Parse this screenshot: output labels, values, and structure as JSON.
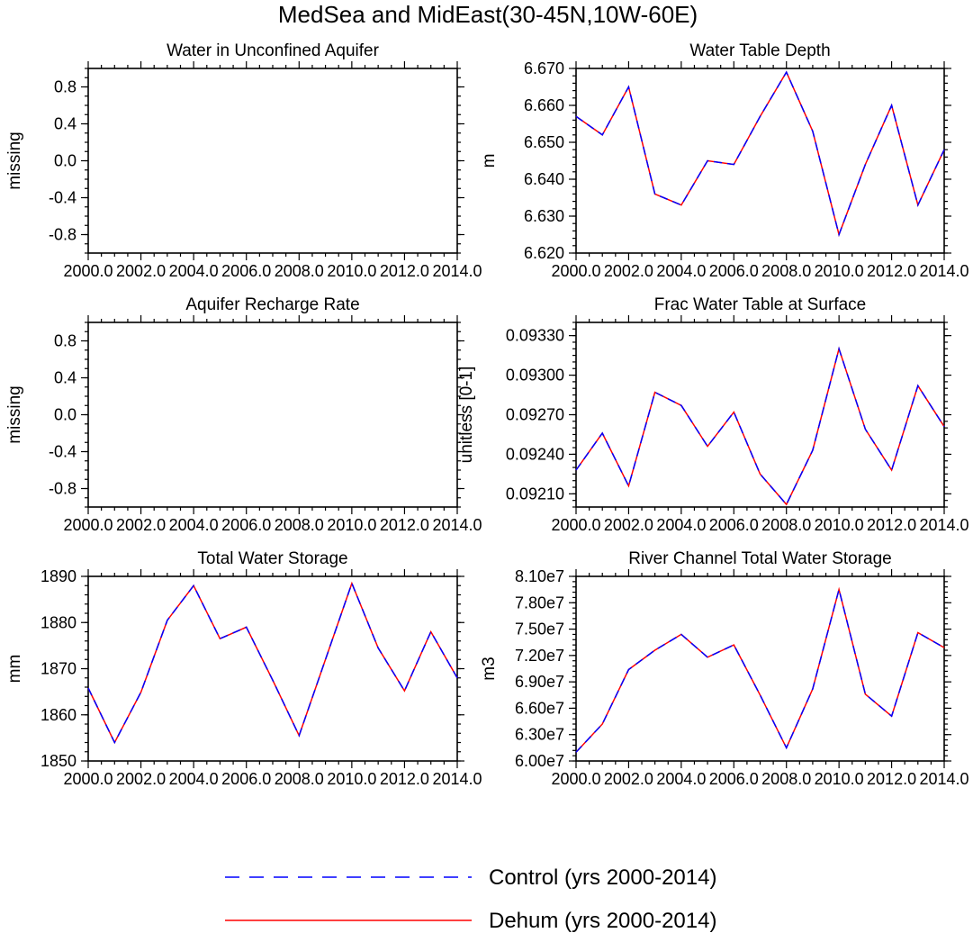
{
  "figure": {
    "title": "MedSea and MidEast(30-45N,10W-60E)"
  },
  "legend": {
    "entries": [
      {
        "label": "Control (yrs 2000-2014)",
        "color": "#0000ff",
        "style": "dashed"
      },
      {
        "label": "Dehum (yrs 2000-2014)",
        "color": "#ff0000",
        "style": "solid"
      }
    ]
  },
  "chart_data": [
    {
      "type": "line",
      "title": "Water in Unconfined Aquifer",
      "xlabel": "",
      "ylabel": "missing",
      "xlim": [
        2000,
        2014
      ],
      "ylim": [
        -1,
        1
      ],
      "xticks": [
        "2000.0",
        "2002.0",
        "2004.0",
        "2006.0",
        "2008.0",
        "2010.0",
        "2012.0",
        "2014.0"
      ],
      "yticks": [
        {
          "v": -0.8,
          "t": "-0.8"
        },
        {
          "v": -0.4,
          "t": "-0.4"
        },
        {
          "v": 0,
          "t": "0.0"
        },
        {
          "v": 0.4,
          "t": "0.4"
        },
        {
          "v": 0.8,
          "t": "0.8"
        }
      ],
      "yminor": 0.1,
      "x": [],
      "series": []
    },
    {
      "type": "line",
      "title": "Water Table Depth",
      "xlabel": "",
      "ylabel": "m",
      "xlim": [
        2000,
        2014
      ],
      "ylim": [
        6.62,
        6.67
      ],
      "xticks": [
        "2000.0",
        "2002.0",
        "2004.0",
        "2006.0",
        "2008.0",
        "2010.0",
        "2012.0",
        "2014.0"
      ],
      "yticks": [
        {
          "v": 6.62,
          "t": "6.620"
        },
        {
          "v": 6.63,
          "t": "6.630"
        },
        {
          "v": 6.64,
          "t": "6.640"
        },
        {
          "v": 6.65,
          "t": "6.650"
        },
        {
          "v": 6.66,
          "t": "6.660"
        },
        {
          "v": 6.67,
          "t": "6.670"
        }
      ],
      "yminor": 0.002,
      "x": [
        2000,
        2001,
        2002,
        2003,
        2004,
        2005,
        2006,
        2007,
        2008,
        2009,
        2010,
        2011,
        2012,
        2013,
        2014
      ],
      "series": [
        {
          "name": "Control (yrs 2000-2014)",
          "values": [
            6.657,
            6.652,
            6.665,
            6.636,
            6.633,
            6.645,
            6.644,
            6.657,
            6.669,
            6.653,
            6.625,
            6.644,
            6.66,
            6.633,
            6.648
          ]
        },
        {
          "name": "Dehum (yrs 2000-2014)",
          "values": [
            6.657,
            6.652,
            6.665,
            6.636,
            6.633,
            6.645,
            6.644,
            6.657,
            6.669,
            6.653,
            6.625,
            6.644,
            6.66,
            6.633,
            6.648
          ]
        }
      ]
    },
    {
      "type": "line",
      "title": "Aquifer Recharge Rate",
      "xlabel": "",
      "ylabel": "missing",
      "xlim": [
        2000,
        2014
      ],
      "ylim": [
        -1,
        1
      ],
      "xticks": [
        "2000.0",
        "2002.0",
        "2004.0",
        "2006.0",
        "2008.0",
        "2010.0",
        "2012.0",
        "2014.0"
      ],
      "yticks": [
        {
          "v": -0.8,
          "t": "-0.8"
        },
        {
          "v": -0.4,
          "t": "-0.4"
        },
        {
          "v": 0,
          "t": "0.0"
        },
        {
          "v": 0.4,
          "t": "0.4"
        },
        {
          "v": 0.8,
          "t": "0.8"
        }
      ],
      "yminor": 0.1,
      "x": [],
      "series": []
    },
    {
      "type": "line",
      "title": "Frac Water Table at Surface",
      "xlabel": "",
      "ylabel": "unitless [0-1]",
      "xlim": [
        2000,
        2014
      ],
      "ylim": [
        0.092,
        0.0934
      ],
      "xticks": [
        "2000.0",
        "2002.0",
        "2004.0",
        "2006.0",
        "2008.0",
        "2010.0",
        "2012.0",
        "2014.0"
      ],
      "yticks": [
        {
          "v": 0.0921,
          "t": "0.09210"
        },
        {
          "v": 0.0924,
          "t": "0.09240"
        },
        {
          "v": 0.0927,
          "t": "0.09270"
        },
        {
          "v": 0.093,
          "t": "0.09300"
        },
        {
          "v": 0.0933,
          "t": "0.09330"
        }
      ],
      "yminor": 5e-05,
      "x": [
        2000,
        2001,
        2002,
        2003,
        2004,
        2005,
        2006,
        2007,
        2008,
        2009,
        2010,
        2011,
        2012,
        2013,
        2014
      ],
      "series": [
        {
          "name": "Control (yrs 2000-2014)",
          "values": [
            0.09228,
            0.09256,
            0.09216,
            0.09287,
            0.09277,
            0.09246,
            0.09272,
            0.09225,
            0.09202,
            0.09243,
            0.0932,
            0.09259,
            0.09228,
            0.09292,
            0.09261
          ]
        },
        {
          "name": "Dehum (yrs 2000-2014)",
          "values": [
            0.09228,
            0.09256,
            0.09216,
            0.09287,
            0.09277,
            0.09246,
            0.09272,
            0.09225,
            0.09202,
            0.09243,
            0.0932,
            0.09259,
            0.09228,
            0.09292,
            0.09261
          ]
        }
      ]
    },
    {
      "type": "line",
      "title": "Total Water Storage",
      "xlabel": "",
      "ylabel": "mm",
      "xlim": [
        2000,
        2014
      ],
      "ylim": [
        1850,
        1890
      ],
      "xticks": [
        "2000.0",
        "2002.0",
        "2004.0",
        "2006.0",
        "2008.0",
        "2010.0",
        "2012.0",
        "2014.0"
      ],
      "yticks": [
        {
          "v": 1850,
          "t": "1850"
        },
        {
          "v": 1860,
          "t": "1860"
        },
        {
          "v": 1870,
          "t": "1870"
        },
        {
          "v": 1880,
          "t": "1880"
        },
        {
          "v": 1890,
          "t": "1890"
        }
      ],
      "yminor": 2,
      "x": [
        2000,
        2001,
        2002,
        2003,
        2004,
        2005,
        2006,
        2007,
        2008,
        2009,
        2010,
        2011,
        2012,
        2013,
        2014
      ],
      "series": [
        {
          "name": "Control (yrs 2000-2014)",
          "values": [
            1865.8,
            1854.0,
            1864.9,
            1880.5,
            1888.0,
            1876.5,
            1879.0,
            1867.5,
            1855.5,
            1872.0,
            1888.5,
            1874.5,
            1865.2,
            1878.0,
            1868.0
          ]
        },
        {
          "name": "Dehum (yrs 2000-2014)",
          "values": [
            1865.8,
            1854.0,
            1864.9,
            1880.5,
            1888.0,
            1876.5,
            1879.0,
            1867.5,
            1855.5,
            1872.0,
            1888.5,
            1874.5,
            1865.2,
            1878.0,
            1868.0
          ]
        }
      ]
    },
    {
      "type": "line",
      "title": "River Channel Total Water Storage",
      "xlabel": "",
      "ylabel": "m3",
      "xlim": [
        2000,
        2014
      ],
      "ylim": [
        60000000,
        81000000
      ],
      "xticks": [
        "2000.0",
        "2002.0",
        "2004.0",
        "2006.0",
        "2008.0",
        "2010.0",
        "2012.0",
        "2014.0"
      ],
      "yticks": [
        {
          "v": 60000000,
          "t": "6.00e7"
        },
        {
          "v": 63000000,
          "t": "6.30e7"
        },
        {
          "v": 66000000,
          "t": "6.60e7"
        },
        {
          "v": 69000000,
          "t": "6.90e7"
        },
        {
          "v": 72000000,
          "t": "7.20e7"
        },
        {
          "v": 75000000,
          "t": "7.50e7"
        },
        {
          "v": 78000000,
          "t": "7.80e7"
        },
        {
          "v": 81000000,
          "t": "8.10e7"
        }
      ],
      "yminor": 600000,
      "x": [
        2000,
        2001,
        2002,
        2003,
        2004,
        2005,
        2006,
        2007,
        2008,
        2009,
        2010,
        2011,
        2012,
        2013,
        2014
      ],
      "series": [
        {
          "name": "Control (yrs 2000-2014)",
          "values": [
            61000000,
            64200000,
            70400000,
            72600000,
            74400000,
            71800000,
            73200000,
            67500000,
            61500000,
            68200000,
            79500000,
            67600000,
            65100000,
            74600000,
            72900000
          ]
        },
        {
          "name": "Dehum (yrs 2000-2014)",
          "values": [
            61000000,
            64200000,
            70400000,
            72600000,
            74400000,
            71800000,
            73200000,
            67500000,
            61500000,
            68200000,
            79500000,
            67600000,
            65100000,
            74600000,
            72900000
          ]
        }
      ]
    }
  ]
}
